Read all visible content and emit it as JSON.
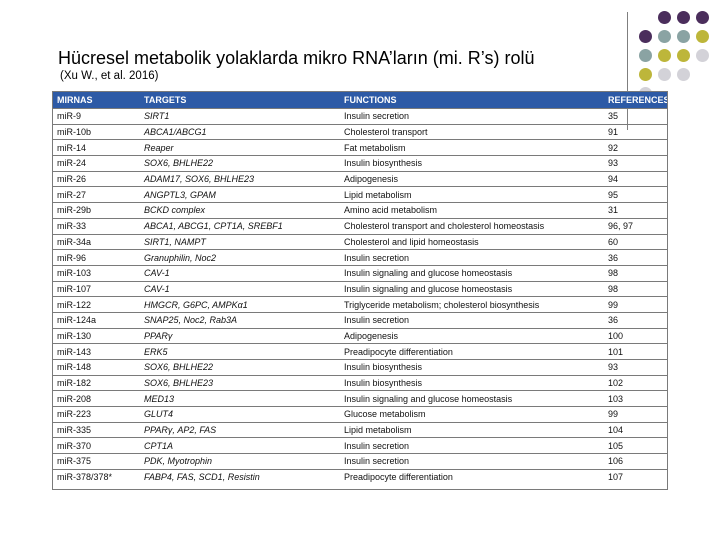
{
  "title": "Hücresel metabolik yolaklarda mikro RNA’ların (mi. R’s) rolü",
  "citation": "(Xu W., et al. 2016)",
  "colors": {
    "header_bg": "#2d5aa6",
    "dot_purple": "#4b2e5c",
    "dot_teal": "#8aa3a3",
    "dot_olive": "#bdb63a",
    "dot_light": "#d3d2d8"
  },
  "table": {
    "headers": [
      "miRNAs",
      "TARGETS",
      "FUNCTIONS",
      "REFERENCES"
    ],
    "rows": [
      [
        "miR-9",
        "SIRT1",
        "Insulin secretion",
        "35"
      ],
      [
        "miR-10b",
        "ABCA1/ABCG1",
        "Cholesterol transport",
        "91"
      ],
      [
        "miR-14",
        "Reaper",
        "Fat metabolism",
        "92"
      ],
      [
        "miR-24",
        "SOX6, BHLHE22",
        "Insulin biosynthesis",
        "93"
      ],
      [
        "miR-26",
        "ADAM17, SOX6, BHLHE23",
        "Adipogenesis",
        "94"
      ],
      [
        "miR-27",
        "ANGPTL3, GPAM",
        "Lipid metabolism",
        "95"
      ],
      [
        "miR-29b",
        "BCKD complex",
        "Amino acid metabolism",
        "31"
      ],
      [
        "miR-33",
        "ABCA1, ABCG1, CPT1A, SREBF1",
        "Cholesterol transport and cholesterol homeostasis",
        "96, 97"
      ],
      [
        "miR-34a",
        "SIRT1, NAMPT",
        "Cholesterol and lipid homeostasis",
        "60"
      ],
      [
        "miR-96",
        "Granuphilin, Noc2",
        "Insulin secretion",
        "36"
      ],
      [
        "miR-103",
        "CAV-1",
        "Insulin signaling and glucose homeostasis",
        "98"
      ],
      [
        "miR-107",
        "CAV-1",
        "Insulin signaling and glucose homeostasis",
        "98"
      ],
      [
        "miR-122",
        "HMGCR, G6PC, AMPKα1",
        "Triglyceride metabolism; cholesterol biosynthesis",
        "99"
      ],
      [
        "miR-124a",
        "SNAP25, Noc2, Rab3A",
        "Insulin secretion",
        "36"
      ],
      [
        "miR-130",
        "PPARγ",
        "Adipogenesis",
        "100"
      ],
      [
        "miR-143",
        "ERK5",
        "Preadipocyte differentiation",
        "101"
      ],
      [
        "miR-148",
        "SOX6, BHLHE22",
        "Insulin biosynthesis",
        "93"
      ],
      [
        "miR-182",
        "SOX6, BHLHE23",
        "Insulin biosynthesis",
        "102"
      ],
      [
        "miR-208",
        "MED13",
        "Insulin signaling and glucose homeostasis",
        "103"
      ],
      [
        "miR-223",
        "GLUT4",
        "Glucose metabolism",
        "99"
      ],
      [
        "miR-335",
        "PPARγ, AP2, FAS",
        "Lipid metabolism",
        "104"
      ],
      [
        "miR-370",
        "CPT1A",
        "Insulin secretion",
        "105"
      ],
      [
        "miR-375",
        "PDK, Myotrophin",
        "Insulin secretion",
        "106"
      ],
      [
        "miR-378/378*",
        "FABP4, FAS, SCD1, Resistin",
        "Preadipocyte differentiation",
        "107"
      ]
    ]
  }
}
